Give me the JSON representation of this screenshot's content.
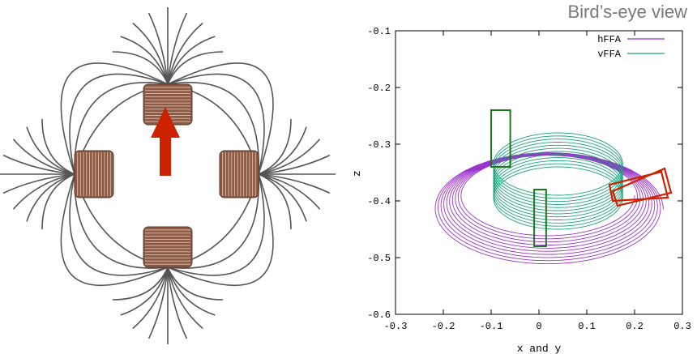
{
  "title": "Bird’s-eye view",
  "colors": {
    "hFFA": "#9933cc",
    "vFFA": "#1aa37a",
    "arrow": "#cc2200",
    "coil": "#8a5a44",
    "fieldline": "#444444"
  },
  "chart_data": {
    "type": "line",
    "xlabel": "x and y",
    "ylabel": "z",
    "xlim": [
      -0.3,
      0.3
    ],
    "ylim": [
      -0.6,
      -0.1
    ],
    "xticks": [
      "-0.3",
      "-0.2",
      "-0.1",
      "0",
      "0.1",
      "0.2",
      "0.3"
    ],
    "yticks": [
      "-0.1",
      "-0.2",
      "-0.3",
      "-0.4",
      "-0.5",
      "-0.6"
    ],
    "legend_position": "top-right",
    "series": [
      {
        "name": "hFFA",
        "color": "#9933cc",
        "shape": "spiral",
        "center": [
          0.02,
          -0.39
        ],
        "rx": [
          0.18,
          0.24
        ],
        "ry": [
          0.07,
          0.1
        ],
        "turns": 10
      },
      {
        "name": "vFFA",
        "color": "#1aa37a",
        "shape": "stacked-rings",
        "center": [
          0.04,
          -0.335
        ],
        "rx": 0.135,
        "ry": 0.055,
        "z_offsets": [
          0,
          -0.06
        ],
        "turns": 12
      }
    ],
    "boxes": [
      {
        "label": "green",
        "x": [
          -0.1,
          -0.06
        ],
        "y": [
          -0.34,
          -0.24
        ]
      },
      {
        "label": "green",
        "x": [
          -0.01,
          0.015
        ],
        "y": [
          -0.48,
          -0.38
        ]
      }
    ]
  }
}
